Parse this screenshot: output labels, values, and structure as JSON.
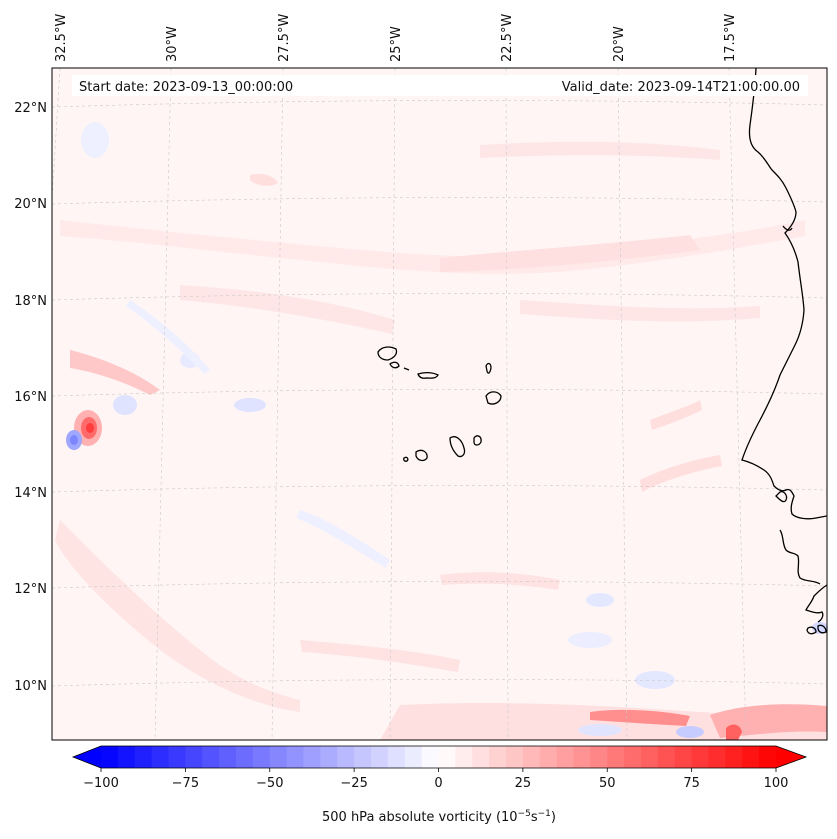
{
  "map": {
    "start_date_text": "Start date: 2023-09-13_00:00:00",
    "valid_date_text": "Valid_date: 2023-09-14T21:00:00.00",
    "longitude_labels": [
      "32.5°W",
      "30°W",
      "27.5°W",
      "25°W",
      "22.5°W",
      "20°W",
      "17.5°W"
    ],
    "latitude_labels": [
      "22°N",
      "20°N",
      "18°N",
      "16°N",
      "14°N",
      "12°N",
      "10°N"
    ],
    "field": "500 hPa absolute vorticity",
    "units_prefix": "500 hPa absolute vorticity (10",
    "units_exp1": "−5",
    "units_mid": "s",
    "units_exp2": "−1",
    "units_suffix": ")"
  },
  "colorbar": {
    "min": -100,
    "max": 100,
    "tick_values": [
      -100,
      -75,
      -50,
      -25,
      0,
      25,
      50,
      75,
      100
    ],
    "tick_labels": [
      "−100",
      "−75",
      "−50",
      "−25",
      "0",
      "25",
      "50",
      "75",
      "100"
    ],
    "extend": "both",
    "low_color": "#0000ff",
    "mid_color": "#ffffff",
    "high_color": "#ff0000"
  },
  "colors": {
    "coast": "#000000",
    "grid": "#c8c8c8",
    "faint_positive": "#fff0f0",
    "light_positive": "#ffe0e0",
    "light_negative": "#eef0ff"
  }
}
